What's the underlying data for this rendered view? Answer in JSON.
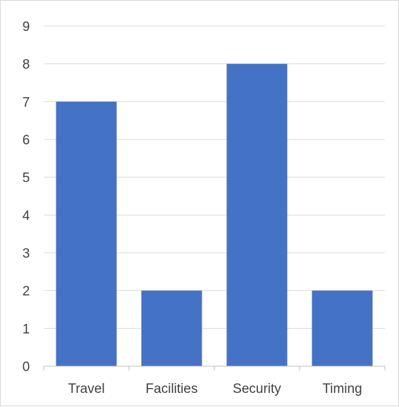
{
  "chart_data": {
    "type": "bar",
    "categories": [
      "Travel",
      "Facilities",
      "Security",
      "Timing"
    ],
    "values": [
      7,
      2,
      8,
      2
    ],
    "title": "",
    "xlabel": "",
    "ylabel": "",
    "ylim": [
      0,
      9
    ],
    "y_ticks": [
      "0",
      "1",
      "2",
      "3",
      "4",
      "5",
      "6",
      "7",
      "8",
      "9"
    ],
    "grid": true,
    "legend": "none",
    "colors": {
      "bar": "#4472C4",
      "grid": "#d9d9d9",
      "axis": "#bfbfbf",
      "text": "#404040",
      "border": "#d9d9d9"
    }
  }
}
